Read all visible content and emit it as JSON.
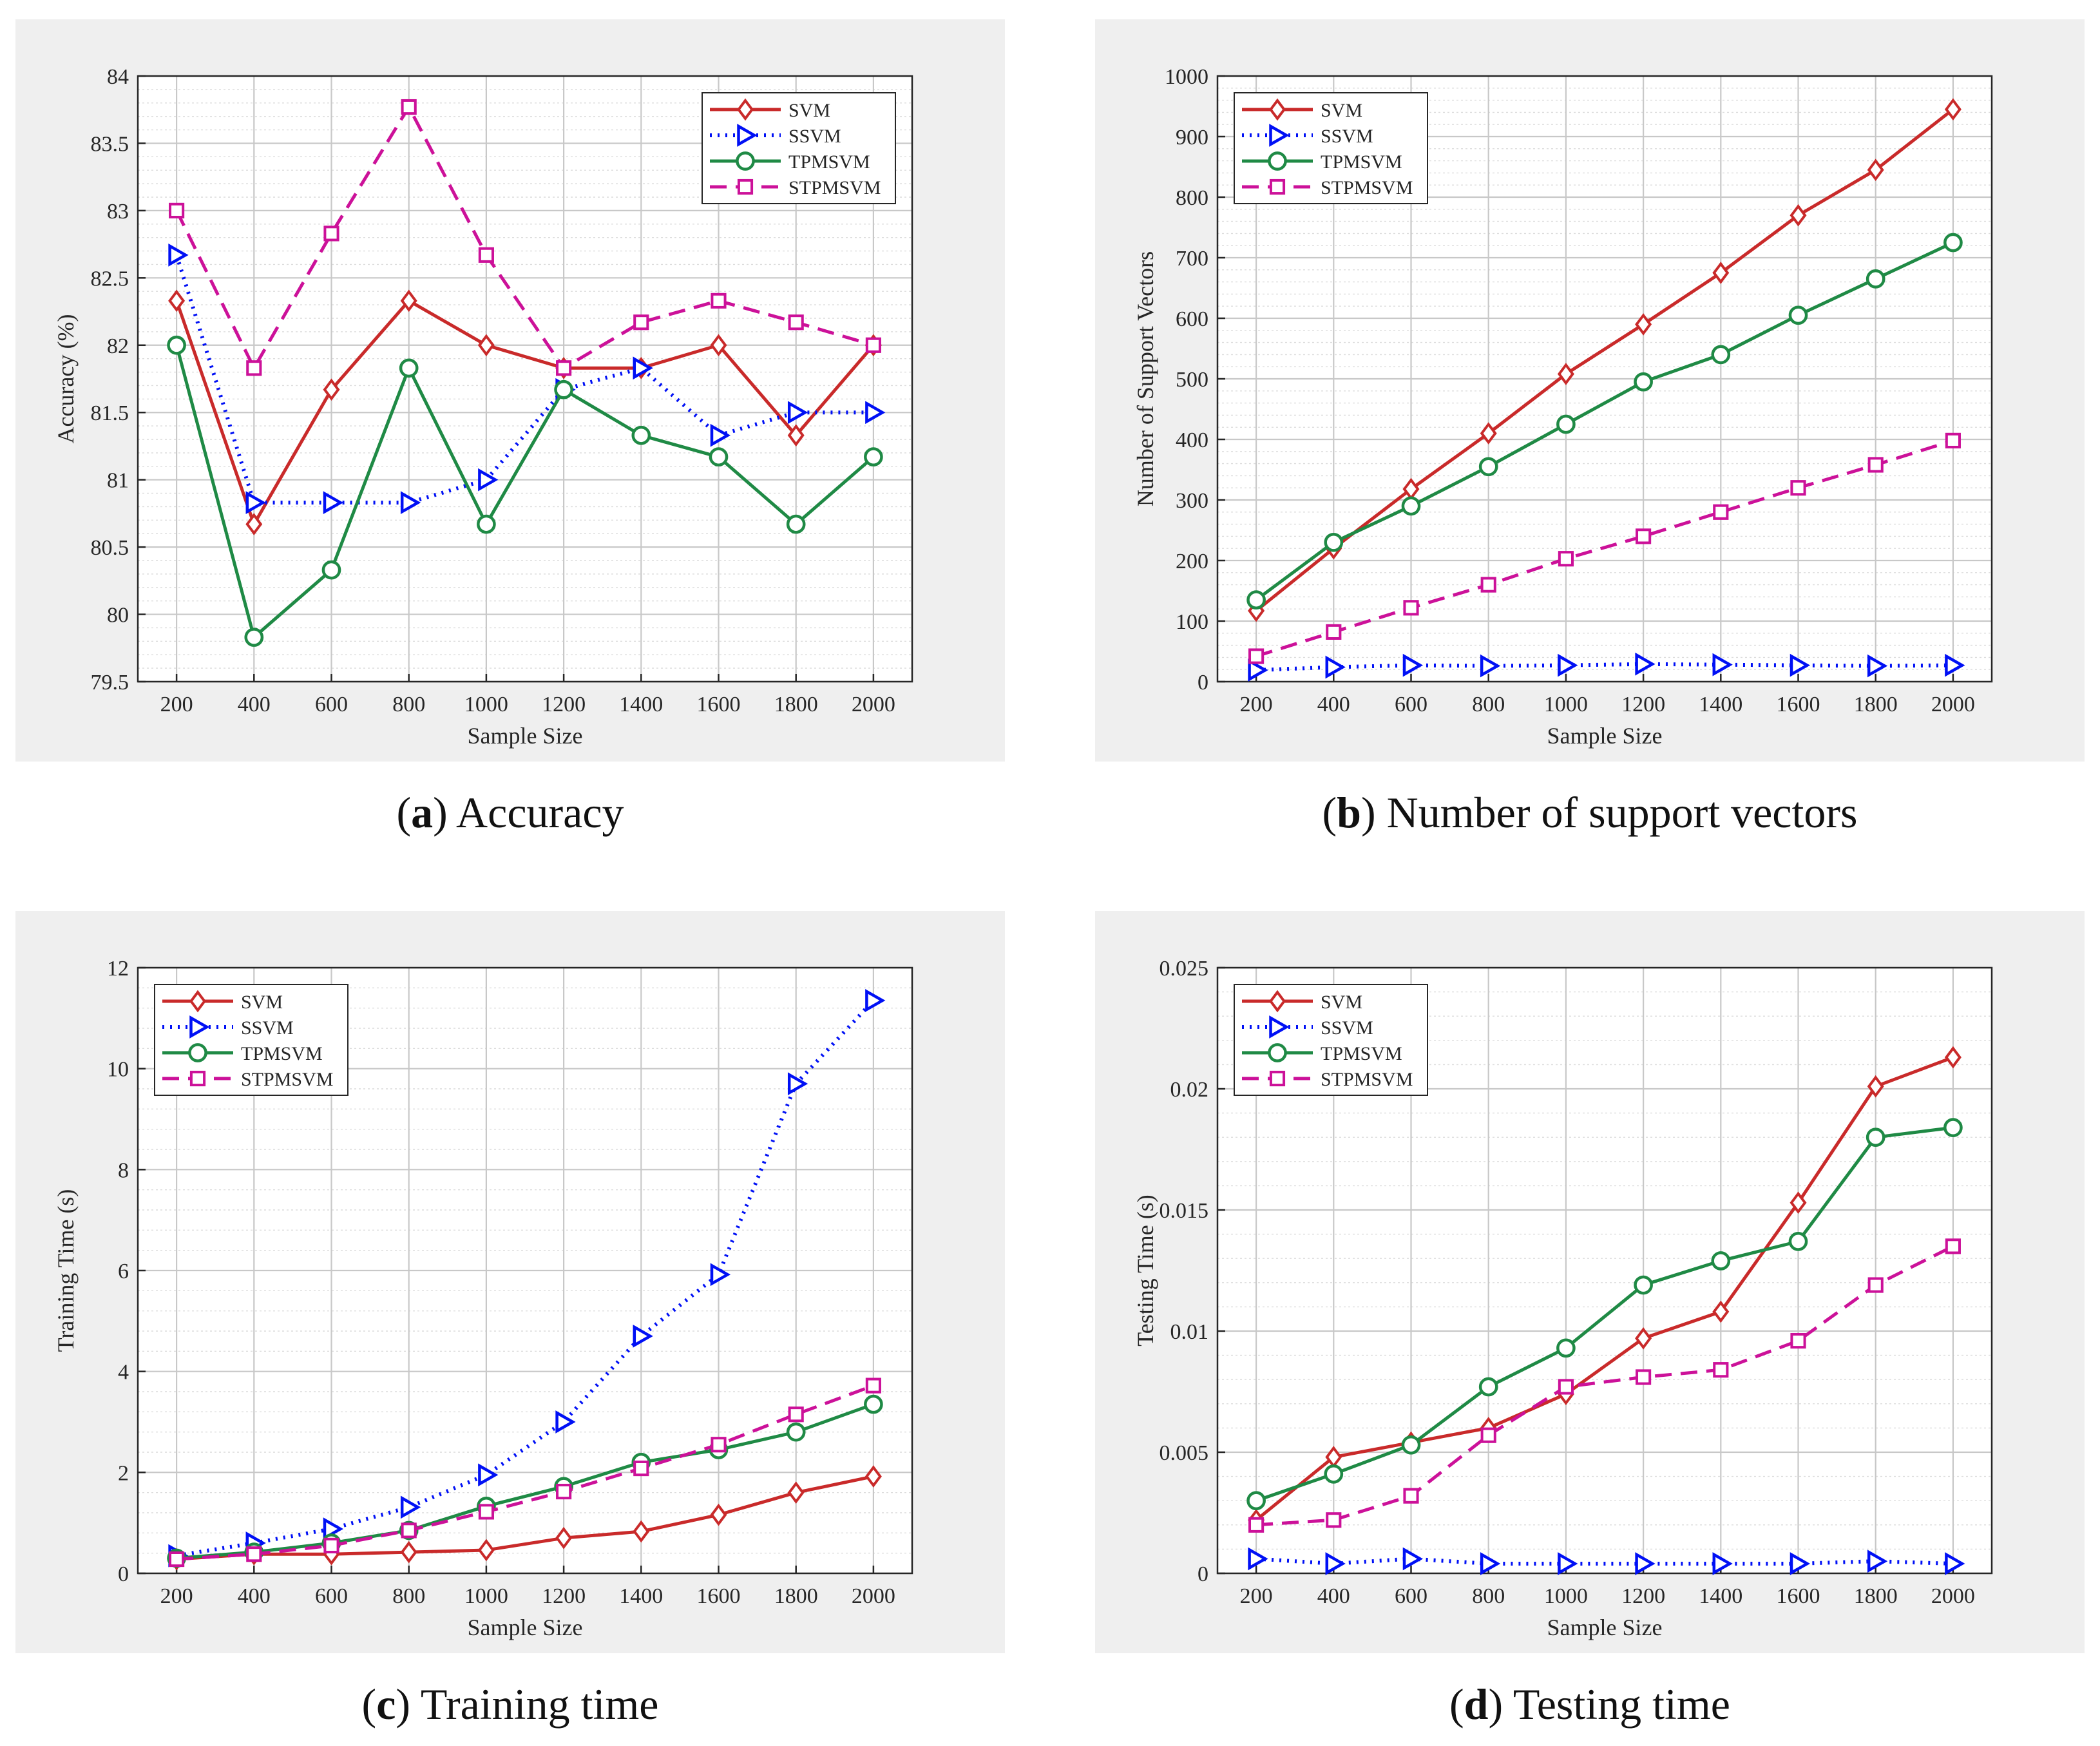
{
  "colors": {
    "svm": "#c92a2a",
    "ssvm": "#0010f5",
    "tpmsvm": "#1f8a45",
    "stpmsvm": "#cc1199",
    "figure_bg": "#efefef"
  },
  "captions": [
    {
      "letter": "a",
      "text": "Accuracy"
    },
    {
      "letter": "b",
      "text": "Number of support vectors"
    },
    {
      "letter": "c",
      "text": "Training time"
    },
    {
      "letter": "d",
      "text": "Testing time"
    }
  ],
  "chart_data": [
    {
      "type": "line",
      "x": [
        200,
        400,
        600,
        800,
        1000,
        1200,
        1400,
        1600,
        1800,
        2000
      ],
      "xticks": [
        "200",
        "400",
        "600",
        "800",
        "1000",
        "1200",
        "1400",
        "1600",
        "1800",
        "2000"
      ],
      "xlabel": "Sample Size",
      "ylabel": "Accuracy (%)",
      "ylim": [
        79.5,
        84
      ],
      "yticks": [
        "79.5",
        "80",
        "80.5",
        "81",
        "81.5",
        "82",
        "82.5",
        "83",
        "83.5",
        "84"
      ],
      "legend": "top-right",
      "grid": true,
      "series": [
        {
          "name": "SVM",
          "values": [
            82.33,
            80.67,
            81.67,
            82.33,
            82.0,
            81.83,
            81.83,
            82.0,
            81.33,
            82.0
          ]
        },
        {
          "name": "SSVM",
          "values": [
            82.67,
            80.83,
            80.83,
            80.83,
            81.0,
            81.67,
            81.83,
            81.33,
            81.5,
            81.5
          ]
        },
        {
          "name": "TPMSVM",
          "values": [
            82.0,
            79.83,
            80.33,
            81.83,
            80.67,
            81.67,
            81.33,
            81.17,
            80.67,
            81.17
          ]
        },
        {
          "name": "STPMSVM",
          "values": [
            83.0,
            81.83,
            82.83,
            83.77,
            82.67,
            81.83,
            82.17,
            82.33,
            82.17,
            82.0
          ]
        }
      ]
    },
    {
      "type": "line",
      "x": [
        200,
        400,
        600,
        800,
        1000,
        1200,
        1400,
        1600,
        1800,
        2000
      ],
      "xticks": [
        "200",
        "400",
        "600",
        "800",
        "1000",
        "1200",
        "1400",
        "1600",
        "1800",
        "2000"
      ],
      "xlabel": "Sample Size",
      "ylabel": "Number of Support Vectors",
      "ylim": [
        0,
        1000
      ],
      "yticks": [
        "0",
        "100",
        "200",
        "300",
        "400",
        "500",
        "600",
        "700",
        "800",
        "900",
        "1000"
      ],
      "legend": "top-left",
      "grid": true,
      "series": [
        {
          "name": "SVM",
          "values": [
            117,
            220,
            318,
            410,
            508,
            590,
            675,
            770,
            845,
            945
          ]
        },
        {
          "name": "SSVM",
          "values": [
            19,
            24,
            27,
            26,
            27,
            29,
            28,
            27,
            26,
            27
          ]
        },
        {
          "name": "TPMSVM",
          "values": [
            135,
            230,
            290,
            355,
            425,
            495,
            540,
            605,
            665,
            725
          ]
        },
        {
          "name": "STPMSVM",
          "values": [
            42,
            82,
            122,
            160,
            203,
            240,
            280,
            320,
            358,
            398
          ]
        }
      ]
    },
    {
      "type": "line",
      "x": [
        200,
        400,
        600,
        800,
        1000,
        1200,
        1400,
        1600,
        1800,
        2000
      ],
      "xticks": [
        "200",
        "400",
        "600",
        "800",
        "1000",
        "1200",
        "1400",
        "1600",
        "1800",
        "2000"
      ],
      "xlabel": "Sample Size",
      "ylabel": "Training Time (s)",
      "ylim": [
        0,
        12
      ],
      "yticks": [
        "0",
        "2",
        "4",
        "6",
        "8",
        "10",
        "12"
      ],
      "legend": "top-left",
      "grid": true,
      "series": [
        {
          "name": "SVM",
          "values": [
            0.28,
            0.38,
            0.38,
            0.42,
            0.46,
            0.7,
            0.83,
            1.16,
            1.6,
            1.92
          ]
        },
        {
          "name": "SSVM",
          "values": [
            0.35,
            0.6,
            0.88,
            1.31,
            1.95,
            3.0,
            4.7,
            5.92,
            9.7,
            11.35
          ]
        },
        {
          "name": "TPMSVM",
          "values": [
            0.3,
            0.42,
            0.6,
            0.85,
            1.33,
            1.72,
            2.2,
            2.45,
            2.8,
            3.35
          ]
        },
        {
          "name": "STPMSVM",
          "values": [
            0.28,
            0.38,
            0.55,
            0.85,
            1.22,
            1.62,
            2.08,
            2.55,
            3.15,
            3.72
          ]
        }
      ]
    },
    {
      "type": "line",
      "x": [
        200,
        400,
        600,
        800,
        1000,
        1200,
        1400,
        1600,
        1800,
        2000
      ],
      "xticks": [
        "200",
        "400",
        "600",
        "800",
        "1000",
        "1200",
        "1400",
        "1600",
        "1800",
        "2000"
      ],
      "xlabel": "Sample Size",
      "ylabel": "Testing Time (s)",
      "ylim": [
        0,
        0.025
      ],
      "yticks": [
        "0",
        "0.005",
        "0.01",
        "0.015",
        "0.02",
        "0.025"
      ],
      "legend": "top-left",
      "grid": true,
      "series": [
        {
          "name": "SVM",
          "values": [
            0.0022,
            0.0048,
            0.0054,
            0.006,
            0.0074,
            0.0097,
            0.0108,
            0.0153,
            0.0201,
            0.0213
          ]
        },
        {
          "name": "SSVM",
          "values": [
            0.0006,
            0.0004,
            0.0006,
            0.0004,
            0.0004,
            0.0004,
            0.0004,
            0.0004,
            0.0005,
            0.0004
          ]
        },
        {
          "name": "TPMSVM",
          "values": [
            0.003,
            0.0041,
            0.0053,
            0.0077,
            0.0093,
            0.0119,
            0.0129,
            0.0137,
            0.018,
            0.0184
          ]
        },
        {
          "name": "STPMSVM",
          "values": [
            0.002,
            0.0022,
            0.0032,
            0.0057,
            0.0077,
            0.0081,
            0.0084,
            0.0096,
            0.0119,
            0.0135
          ]
        }
      ]
    }
  ]
}
